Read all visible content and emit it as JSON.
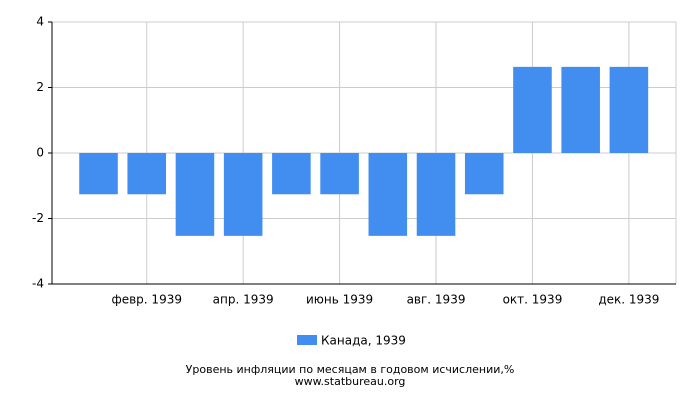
{
  "chart_data": {
    "type": "bar",
    "categories": [
      null,
      "февр. 1939",
      null,
      "апр. 1939",
      null,
      "июнь 1939",
      null,
      "авг. 1939",
      null,
      "окт. 1939",
      null,
      "дек. 1939"
    ],
    "series": [
      {
        "name": "Канада, 1939",
        "color": "#428ef0",
        "values": [
          -1.26,
          -1.26,
          -2.53,
          -2.53,
          -1.26,
          -1.26,
          -2.53,
          -2.53,
          -1.26,
          2.63,
          2.63,
          2.63
        ]
      }
    ],
    "ylim": [
      -4,
      4
    ],
    "yticks": [
      -4,
      -2,
      0,
      2,
      4
    ],
    "grid": true,
    "title": "Уровень инфляции по месяцам в годовом исчислении,%",
    "source": "www.statbureau.org"
  }
}
